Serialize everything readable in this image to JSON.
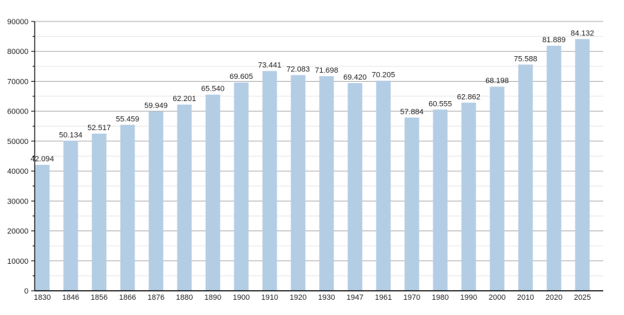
{
  "chart_data": {
    "type": "bar",
    "title": "",
    "xlabel": "",
    "ylabel": "",
    "ylim": [
      0,
      90000
    ],
    "yticks": [
      0,
      10000,
      20000,
      30000,
      40000,
      50000,
      60000,
      70000,
      80000,
      90000
    ],
    "grid": true,
    "bar_color": "#b3cde5",
    "categories": [
      "1830",
      "1846",
      "1856",
      "1866",
      "1876",
      "1880",
      "1890",
      "1900",
      "1910",
      "1920",
      "1930",
      "1947",
      "1961",
      "1970",
      "1980",
      "1990",
      "2000",
      "2010",
      "2020",
      "2025"
    ],
    "values": [
      42094,
      50134,
      52517,
      55459,
      59949,
      62201,
      65540,
      69605,
      73441,
      72083,
      71698,
      69420,
      70205,
      57884,
      60555,
      62862,
      68198,
      75588,
      81889,
      84132
    ],
    "data_labels": [
      "42.094",
      "50.134",
      "52.517",
      "55.459",
      "59.949",
      "62.201",
      "65.540",
      "69.605",
      "73.441",
      "72.083",
      "71.698",
      "69.420",
      "70.205",
      "57.884",
      "60.555",
      "62.862",
      "68.198",
      "75.588",
      "81.889",
      "84.132"
    ]
  }
}
